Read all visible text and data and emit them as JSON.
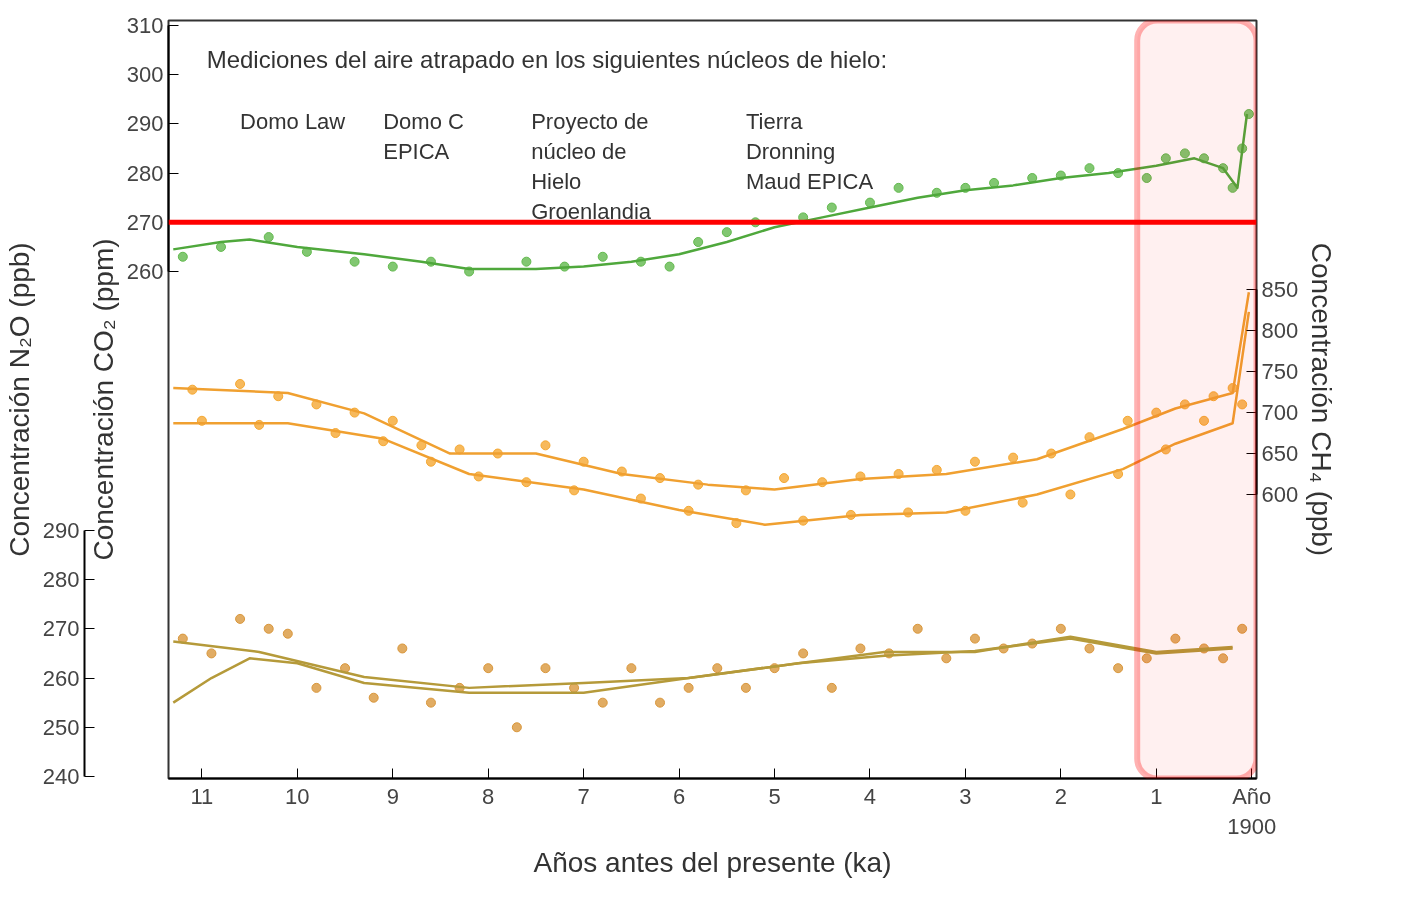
{
  "chart_data": {
    "type": "line",
    "xlabel": "Años antes del presente (ka)",
    "ylabel": "Concentración CO₂ (ppm)",
    "y2label": "Concentración CH₄ (ppb)",
    "y3label": "Concentración N₂O (ppb)",
    "annotations": [
      "Mediciones del aire atrapado en los siguientes núcleos de hielo:",
      "Domo Law",
      "Domo C EPICA",
      "Proyecto de núcleo de Hielo Groenlandia",
      "Tierra Dronning Maud EPICA"
    ],
    "xlim": [
      11.35,
      -0.05
    ],
    "xticks": [
      11,
      10,
      9,
      8,
      7,
      6,
      5,
      4,
      3,
      2,
      1,
      {
        "value": 0,
        "label": "Año 1900"
      }
    ],
    "ylim": [
      157,
      311
    ],
    "yticks": [
      260,
      270,
      280,
      290,
      300,
      310
    ],
    "y2lim": [
      253,
      1179
    ],
    "y2ticks": [
      600,
      650,
      700,
      750,
      800,
      850
    ],
    "y3lim": [
      239.6,
      393.5
    ],
    "y3ticks": [
      240,
      250,
      260,
      270,
      280,
      290
    ],
    "grid": false,
    "line_style": "solid",
    "series": [
      {
        "type": "scatter",
        "axis": "y",
        "color": "#62b94e",
        "marker": "circle",
        "x": [
          11.2,
          10.8,
          10.3,
          9.9,
          9.4,
          9.0,
          8.6,
          8.2,
          7.6,
          7.2,
          6.8,
          6.4,
          6.1,
          5.8,
          5.5,
          5.2,
          4.7,
          4.4,
          4.0,
          3.7,
          3.3,
          3.0,
          2.7,
          2.3,
          2.0,
          1.7,
          1.4,
          1.1,
          0.9,
          0.7,
          0.5,
          0.3,
          0.2,
          0.1,
          0.03
        ],
        "values": [
          263,
          265,
          267,
          264,
          262,
          261,
          262,
          260,
          262,
          261,
          263,
          262,
          261,
          266,
          268,
          270,
          271,
          273,
          274,
          277,
          276,
          277,
          278,
          279,
          279.5,
          281,
          280,
          279,
          283,
          284,
          283,
          281,
          277,
          285,
          292
        ]
      },
      {
        "axis": "y",
        "color": "#4fa83c",
        "x": [
          11.3,
          10.8,
          10.5,
          10,
          9.3,
          8.7,
          8.2,
          7.5,
          7,
          6.5,
          6,
          5.5,
          5,
          4.5,
          4,
          3.5,
          3,
          2.5,
          2,
          1.5,
          1,
          0.6,
          0.3,
          0.15,
          0.05
        ],
        "values": [
          264.5,
          266,
          266.5,
          265,
          263.5,
          262,
          260.5,
          260.5,
          261,
          262,
          263.5,
          266,
          269,
          271,
          273,
          275,
          276.5,
          277.5,
          279,
          280,
          281.5,
          283,
          281,
          277,
          292
        ]
      },
      {
        "type": "scatter",
        "axis": "y2",
        "color": "#f5a832",
        "marker": "circle",
        "x": [
          11.1,
          10.6,
          10.2,
          9.8,
          9.4,
          9.0,
          8.7,
          8.3,
          7.9,
          7.4,
          7.0,
          6.6,
          6.2,
          5.8,
          5.3,
          4.9,
          4.5,
          4.1,
          3.7,
          3.3,
          2.9,
          2.5,
          2.1,
          1.7,
          1.3,
          1.0,
          0.7,
          0.4,
          0.2,
          11.0,
          10.4,
          9.6,
          9.1,
          8.6,
          8.1,
          7.6,
          7.1,
          6.4,
          5.9,
          5.4,
          4.7,
          4.2,
          3.6,
          3.0,
          2.4,
          1.9,
          1.4,
          0.9,
          0.5,
          0.1
        ],
        "values": [
          728,
          735,
          720,
          710,
          700,
          690,
          660,
          655,
          650,
          660,
          640,
          628,
          620,
          612,
          605,
          620,
          615,
          622,
          625,
          630,
          640,
          645,
          650,
          670,
          690,
          700,
          710,
          720,
          730,
          690,
          685,
          675,
          665,
          640,
          622,
          615,
          605,
          595,
          580,
          565,
          568,
          575,
          578,
          580,
          590,
          600,
          625,
          655,
          690,
          710
        ]
      },
      {
        "axis": "y2",
        "color": "#f0a030",
        "x": [
          11.3,
          10.1,
          9.3,
          8.4,
          7.5,
          6.6,
          5.7,
          5.0,
          4.1,
          3.2,
          2.25,
          1.35,
          0.8,
          0.2,
          0.03
        ],
        "values": [
          730,
          724,
          699,
          650,
          650,
          625,
          612,
          606,
          619,
          625,
          643,
          680,
          705,
          724,
          847
        ]
      },
      {
        "axis": "y2",
        "color": "#f0a030",
        "x": [
          11.3,
          10.1,
          9.1,
          8.2,
          7.0,
          6.0,
          5.1,
          4.1,
          3.2,
          2.25,
          1.35,
          0.8,
          0.2,
          0.03
        ],
        "values": [
          687,
          687,
          668,
          625,
          606,
          581,
          563,
          575,
          578,
          600,
          631,
          662,
          687,
          823
        ]
      },
      {
        "type": "scatter",
        "axis": "y3",
        "color": "#d9973c",
        "marker": "circle",
        "x": [
          11.2,
          10.9,
          10.6,
          10.3,
          10.1,
          9.8,
          9.5,
          9.2,
          8.9,
          8.6,
          8.3,
          8.0,
          7.7,
          7.4,
          7.1,
          6.8,
          6.5,
          6.2,
          5.9,
          5.6,
          5.3,
          5.0,
          4.7,
          4.4,
          4.1,
          3.8,
          3.5,
          3.2,
          2.9,
          2.6,
          2.3,
          2.0,
          1.7,
          1.4,
          1.1,
          0.8,
          0.5,
          0.3,
          0.1
        ],
        "values": [
          268,
          265,
          272,
          270,
          269,
          258,
          262,
          256,
          266,
          255,
          258,
          262,
          250,
          262,
          258,
          255,
          262,
          255,
          258,
          262,
          258,
          262,
          265,
          258,
          266,
          265,
          270,
          264,
          268,
          266,
          267,
          270,
          266,
          262,
          264,
          268,
          266,
          264,
          270
        ]
      },
      {
        "axis": "y3",
        "color": "#b59a3a",
        "x": [
          11.3,
          10.4,
          9.3,
          8.2,
          7.0,
          5.9,
          4.75,
          3.85,
          2.9,
          1.9,
          1.0,
          0.2
        ],
        "values": [
          267.4,
          265.3,
          260.2,
          258,
          259,
          260,
          263,
          265.3,
          265.3,
          268.4,
          265.3,
          266.3
        ]
      },
      {
        "axis": "y3",
        "color": "#b59a3a",
        "x": [
          11.3,
          10.9,
          10.5,
          10,
          9.3,
          8.2,
          7,
          5.9,
          4.75,
          3.85,
          2.9,
          1.9,
          1,
          0.2
        ],
        "values": [
          255,
          260,
          264,
          263,
          259,
          257,
          257,
          260,
          263,
          264.5,
          265.5,
          268,
          265,
          266
        ]
      }
    ],
    "ref_lines": [
      {
        "axis": "y",
        "value": 270,
        "color": "#ff0000"
      }
    ],
    "bands": [
      {
        "axis": "x",
        "from": 1.2,
        "to": -0.05,
        "color": "#ff0000"
      }
    ]
  }
}
